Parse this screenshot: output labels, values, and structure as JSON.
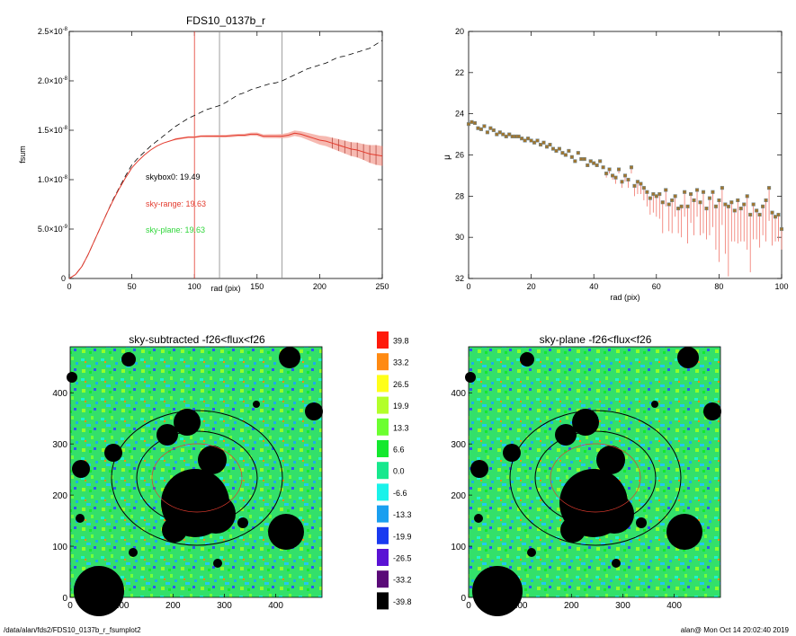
{
  "chart_data": [
    {
      "type": "line",
      "title": "FDS10_0137b_r",
      "xlabel": "rad (pix)",
      "ylabel": "fsum",
      "xlim": [
        0,
        250
      ],
      "ylim": [
        0,
        2.5e-08
      ],
      "xticks": [
        "0",
        "50",
        "100",
        "150",
        "200",
        "250"
      ],
      "yticks": [
        {
          "value": 0,
          "label": "0"
        },
        {
          "value": 5e-09,
          "label": "5.0×10",
          "exp": "-9"
        },
        {
          "value": 1e-08,
          "label": "1.0×10",
          "exp": "-8"
        },
        {
          "value": 1.5e-08,
          "label": "1.5×10",
          "exp": "-8"
        },
        {
          "value": 2e-08,
          "label": "2.0×10",
          "exp": "-8"
        },
        {
          "value": 2.5e-08,
          "label": "2.5×10",
          "exp": "-8"
        }
      ],
      "vlines": [
        {
          "x": 100,
          "color": "#e33b2e"
        },
        {
          "x": 120,
          "color": "#888888"
        },
        {
          "x": 170,
          "color": "#888888"
        }
      ],
      "series": [
        {
          "style": "dashed",
          "color": "#000000",
          "x": [
            0,
            5,
            10,
            15,
            20,
            25,
            30,
            35,
            40,
            45,
            50,
            55,
            60,
            65,
            70,
            75,
            80,
            85,
            90,
            95,
            100,
            105,
            110,
            115,
            120,
            125,
            130,
            135,
            140,
            145,
            150,
            155,
            160,
            165,
            170,
            175,
            180,
            185,
            190,
            195,
            200,
            205,
            210,
            215,
            220,
            225,
            230,
            235,
            240,
            245,
            250
          ],
          "y": [
            0,
            4e-10,
            1.2e-09,
            2.4e-09,
            3.8e-09,
            5.2e-09,
            6.6e-09,
            8e-09,
            9.2e-09,
            1.04e-08,
            1.15e-08,
            1.22e-08,
            1.28e-08,
            1.34e-08,
            1.39e-08,
            1.44e-08,
            1.49e-08,
            1.54e-08,
            1.58e-08,
            1.62e-08,
            1.65e-08,
            1.68e-08,
            1.71e-08,
            1.73e-08,
            1.75e-08,
            1.78e-08,
            1.82e-08,
            1.86e-08,
            1.88e-08,
            1.91e-08,
            1.93e-08,
            1.95e-08,
            1.97e-08,
            1.98e-08,
            2e-08,
            2.03e-08,
            2.06e-08,
            2.09e-08,
            2.12e-08,
            2.14e-08,
            2.16e-08,
            2.18e-08,
            2.21e-08,
            2.24e-08,
            2.25e-08,
            2.27e-08,
            2.29e-08,
            2.31e-08,
            2.33e-08,
            2.37e-08,
            2.41e-08
          ]
        },
        {
          "style": "solid",
          "color": "#e33b2e",
          "x": [
            0,
            5,
            10,
            15,
            20,
            25,
            30,
            35,
            40,
            45,
            50,
            55,
            60,
            65,
            70,
            75,
            80,
            85,
            90,
            95,
            100,
            105,
            110,
            115,
            120,
            125,
            130,
            135,
            140,
            145,
            150,
            155,
            160,
            165,
            170,
            175,
            180,
            185,
            190,
            195,
            200,
            205,
            210,
            215,
            220,
            225,
            230,
            235,
            240,
            245,
            250
          ],
          "y": [
            0,
            4e-10,
            1.2e-09,
            2.4e-09,
            3.8e-09,
            5.2e-09,
            6.6e-09,
            7.9e-09,
            9.1e-09,
            1.02e-08,
            1.12e-08,
            1.19e-08,
            1.25e-08,
            1.3e-08,
            1.34e-08,
            1.37e-08,
            1.39e-08,
            1.41e-08,
            1.42e-08,
            1.43e-08,
            1.43e-08,
            1.44e-08,
            1.44e-08,
            1.44e-08,
            1.44e-08,
            1.44e-08,
            1.445e-08,
            1.45e-08,
            1.45e-08,
            1.46e-08,
            1.46e-08,
            1.44e-08,
            1.44e-08,
            1.44e-08,
            1.44e-08,
            1.45e-08,
            1.47e-08,
            1.46e-08,
            1.44e-08,
            1.42e-08,
            1.4e-08,
            1.39e-08,
            1.37e-08,
            1.35e-08,
            1.33e-08,
            1.31e-08,
            1.3e-08,
            1.28e-08,
            1.26e-08,
            1.25e-08,
            1.24e-08
          ],
          "err": [
            0,
            0,
            0,
            0,
            0,
            0,
            0,
            0,
            0,
            0,
            0,
            0,
            0,
            0,
            0,
            0,
            0,
            1e-10,
            1e-10,
            1e-10,
            1e-10,
            1e-10,
            1.2e-10,
            1.2e-10,
            1.3e-10,
            1.3e-10,
            1.4e-10,
            1.4e-10,
            1.5e-10,
            1.6e-10,
            1.7e-10,
            1.8e-10,
            2e-10,
            2e-10,
            2.2e-10,
            2.5e-10,
            2.8e-10,
            3e-10,
            3.5e-10,
            4e-10,
            4.5e-10,
            5e-10,
            5.5e-10,
            6e-10,
            6.5e-10,
            7e-10,
            7.5e-10,
            8e-10,
            9e-10,
            1e-09,
            1e-09
          ]
        }
      ],
      "annotations": [
        {
          "text": "skybox0: 19.49",
          "color": "#000000"
        },
        {
          "text": "sky-range: 19.63",
          "color": "#e33b2e"
        },
        {
          "text": "sky-plane: 19.63",
          "color": "#2fd63a"
        }
      ]
    },
    {
      "type": "scatter",
      "title": "",
      "xlabel": "rad (pix)",
      "ylabel": "μ",
      "xlim": [
        0,
        100
      ],
      "ylim": [
        32,
        20
      ],
      "xticks": [
        "0",
        "20",
        "40",
        "60",
        "80",
        "100"
      ],
      "yticks": [
        "20",
        "22",
        "24",
        "26",
        "28",
        "30",
        "32"
      ],
      "points": {
        "x": [
          0,
          1,
          2,
          3,
          4,
          5,
          6,
          7,
          8,
          9,
          10,
          11,
          12,
          13,
          14,
          15,
          16,
          17,
          18,
          19,
          20,
          21,
          22,
          23,
          24,
          25,
          26,
          27,
          28,
          29,
          30,
          31,
          32,
          33,
          34,
          35,
          36,
          37,
          38,
          39,
          40,
          41,
          42,
          43,
          44,
          45,
          46,
          47,
          48,
          49,
          50,
          51,
          52,
          53,
          54,
          55,
          56,
          57,
          58,
          59,
          60,
          61,
          62,
          63,
          64,
          65,
          66,
          67,
          68,
          69,
          70,
          71,
          72,
          73,
          74,
          75,
          76,
          77,
          78,
          79,
          80,
          81,
          82,
          83,
          84,
          85,
          86,
          87,
          88,
          89,
          90,
          91,
          92,
          93,
          94,
          95,
          96,
          97,
          98,
          99,
          100
        ],
        "y": [
          24.5,
          24.4,
          24.45,
          24.7,
          24.75,
          24.6,
          24.9,
          24.7,
          24.8,
          25.0,
          24.9,
          25.0,
          25.1,
          25.0,
          25.1,
          25.1,
          25.1,
          25.2,
          25.3,
          25.2,
          25.3,
          25.4,
          25.3,
          25.5,
          25.4,
          25.6,
          25.5,
          25.7,
          25.8,
          25.7,
          25.9,
          26.0,
          25.8,
          26.1,
          26.3,
          25.9,
          26.2,
          26.2,
          26.5,
          26.3,
          26.4,
          26.5,
          26.3,
          26.6,
          26.9,
          26.7,
          27.0,
          27.1,
          26.7,
          27.3,
          27.0,
          27.2,
          26.6,
          27.5,
          27.3,
          27.4,
          27.6,
          27.8,
          28.1,
          27.9,
          28.0,
          27.9,
          28.3,
          27.7,
          28.4,
          28.2,
          28.0,
          28.6,
          28.5,
          27.8,
          28.5,
          27.9,
          28.2,
          27.7,
          28.3,
          27.8,
          28.6,
          28.1,
          27.8,
          28.5,
          28.2,
          27.6,
          28.4,
          28.5,
          28.3,
          28.7,
          28.2,
          28.6,
          28.4,
          28.0,
          28.9,
          28.4,
          28.7,
          28.9,
          28.5,
          28.2,
          27.6,
          28.8,
          29.0,
          28.9,
          29.6
        ],
        "lower_err": [
          0.05,
          0.05,
          0.05,
          0.05,
          0.05,
          0.05,
          0.05,
          0.05,
          0.05,
          0.05,
          0.05,
          0.05,
          0.05,
          0.05,
          0.05,
          0.05,
          0.05,
          0.05,
          0.05,
          0.05,
          0.05,
          0.05,
          0.05,
          0.05,
          0.05,
          0.05,
          0.05,
          0.05,
          0.05,
          0.05,
          0.05,
          0.05,
          0.05,
          0.05,
          0.05,
          0.05,
          0.05,
          0.05,
          0.05,
          0.05,
          0.08,
          0.1,
          0.1,
          0.1,
          0.2,
          0.2,
          0.2,
          0.3,
          0.2,
          0.3,
          0.3,
          0.4,
          0.3,
          0.5,
          0.6,
          0.5,
          0.6,
          0.7,
          0.8,
          0.9,
          1.0,
          1.2,
          1.5,
          0.8,
          1.3,
          1.6,
          1.0,
          1.2,
          1.5,
          1.2,
          1.8,
          1.4,
          1.7,
          1.3,
          1.6,
          2.0,
          1.5,
          1.8,
          1.7,
          2.1,
          3.0,
          1.8,
          2.4,
          3.4,
          1.9,
          1.5,
          2.1,
          1.6,
          1.8,
          2.6,
          2.8,
          1.7,
          1.4,
          1.6,
          1.4,
          2.0,
          1.6,
          1.6,
          1.2,
          1.3,
          1.0
        ]
      }
    }
  ],
  "images": [
    {
      "title": "sky-subtracted -f26<flux<f26",
      "xticks": [
        "0",
        "100",
        "200",
        "300",
        "400"
      ],
      "yticks": [
        "0",
        "100",
        "200",
        "300",
        "400"
      ]
    },
    {
      "title": "sky-plane -f26<flux<f26",
      "xticks": [
        "0",
        "100",
        "200",
        "300",
        "400"
      ],
      "yticks": [
        "0",
        "100",
        "200",
        "300",
        "400"
      ]
    }
  ],
  "colorbar": {
    "levels": [
      {
        "label": "39.8",
        "color": "#ff1a0a"
      },
      {
        "label": "33.2",
        "color": "#ff8a12"
      },
      {
        "label": "26.5",
        "color": "#ffff1a"
      },
      {
        "label": "19.9",
        "color": "#b3ff2a"
      },
      {
        "label": "13.3",
        "color": "#6cff30"
      },
      {
        "label": "6.6",
        "color": "#14e82e"
      },
      {
        "label": "0.0",
        "color": "#17e88d"
      },
      {
        "label": "-6.6",
        "color": "#1af2ea"
      },
      {
        "label": "-13.3",
        "color": "#1a9ff0"
      },
      {
        "label": "-19.9",
        "color": "#1a3af0"
      },
      {
        "label": "-26.5",
        "color": "#5a12d4"
      },
      {
        "label": "-33.2",
        "color": "#5a0a78"
      },
      {
        "label": "-39.8",
        "color": "#000000"
      }
    ]
  },
  "footer": {
    "left": "/data/alan/fds2/FDS10_0137b_r_fsumplot2",
    "right": "alan@  Mon Oct 14 20:02:40 2019"
  }
}
